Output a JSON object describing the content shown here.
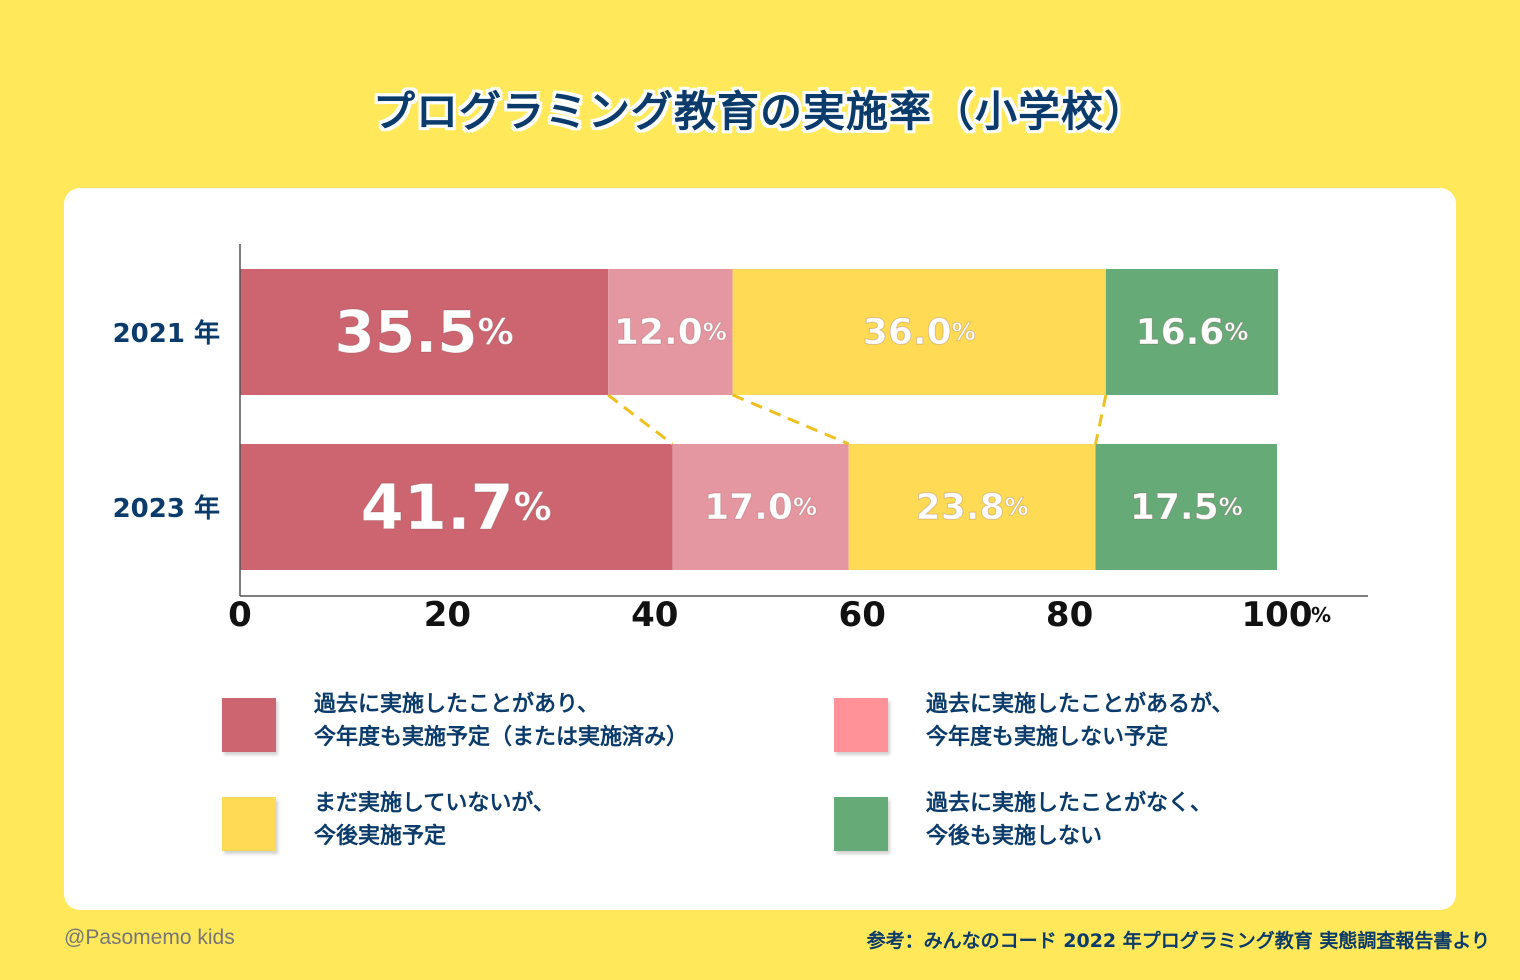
{
  "title": "プログラミング教育の実施率（小学校）",
  "credit": "@Pasomemo kids",
  "source": "参考：みんなのコード 2022 年プログラミング教育 実態調査報告書より",
  "colors": {
    "background": "#ffe85a",
    "title": "#0b3b6b",
    "cat1": "#cc6570",
    "cat2": "#e597a1",
    "cat3": "#ffdb55",
    "cat4": "#66aa78",
    "connector": "#f0c020"
  },
  "legend": [
    {
      "line1": "過去に実施したことがあり、",
      "line2": "今年度も実施予定（または実施済み）",
      "swatch": "#cc6570"
    },
    {
      "line1": "過去に実施したことがあるが、",
      "line2": "今年度も実施しない予定",
      "swatch": "#ff9199"
    },
    {
      "line1": "まだ実施していないが、",
      "line2": "今後実施予定",
      "swatch": "#ffdb55"
    },
    {
      "line1": "過去に実施したことがなく、",
      "line2": "今後も実施しない",
      "swatch": "#66aa78"
    }
  ],
  "chart_data": {
    "type": "bar",
    "orientation": "horizontal",
    "stacked": true,
    "title": "プログラミング教育の実施率（小学校）",
    "categories": [
      "2021 年",
      "2023 年"
    ],
    "series": [
      {
        "name": "過去に実施したことがあり、今年度も実施予定（または実施済み）",
        "values": [
          35.5,
          41.7
        ],
        "labels": [
          "35.5",
          "41.7"
        ],
        "color": "#cc6570"
      },
      {
        "name": "過去に実施したことがあるが、今年度も実施しない予定",
        "values": [
          12.0,
          17.0
        ],
        "labels": [
          "12.0",
          "17.0"
        ],
        "color": "#e597a1"
      },
      {
        "name": "まだ実施していないが、今後実施予定",
        "values": [
          36.0,
          23.8
        ],
        "labels": [
          "36.0",
          "23.8"
        ],
        "color": "#ffdb55"
      },
      {
        "name": "過去に実施したことがなく、今後も実施しない",
        "values": [
          16.6,
          17.5
        ],
        "labels": [
          "16.6",
          "17.5"
        ],
        "color": "#66aa78"
      }
    ],
    "unit": "%",
    "xlim": [
      0,
      100
    ],
    "xticks": [
      "0",
      "20",
      "40",
      "60",
      "80",
      "100"
    ],
    "legend_position": "bottom",
    "grid": false
  }
}
